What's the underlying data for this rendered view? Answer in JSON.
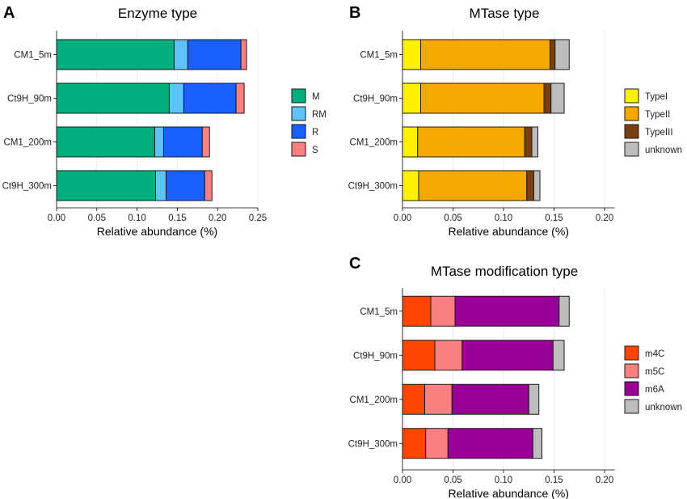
{
  "chart_data": [
    {
      "panel": "A",
      "type": "bar",
      "orientation": "horizontal",
      "stacked": true,
      "title": "Enzyme type",
      "xlabel": "Relative abundance (%)",
      "ylabel": "",
      "xlim": [
        0,
        0.25
      ],
      "xticks": [
        "0.00",
        "0.05",
        "0.10",
        "0.15",
        "0.20",
        "0.25"
      ],
      "categories": [
        "CM1_5m",
        "Ct9H_90m",
        "CM1_200m",
        "Ct9H_300m"
      ],
      "series": [
        {
          "name": "M",
          "color": "#00ae7e",
          "values": [
            0.146,
            0.14,
            0.122,
            0.123
          ]
        },
        {
          "name": "RM",
          "color": "#5fc3f7",
          "values": [
            0.017,
            0.018,
            0.011,
            0.013
          ]
        },
        {
          "name": "R",
          "color": "#1860ff",
          "values": [
            0.066,
            0.065,
            0.048,
            0.048
          ]
        },
        {
          "name": "S",
          "color": "#f88080",
          "values": [
            0.007,
            0.01,
            0.009,
            0.009
          ]
        }
      ],
      "legend_position": "right",
      "grid": "vertical"
    },
    {
      "panel": "B",
      "type": "bar",
      "orientation": "horizontal",
      "stacked": true,
      "title": "MTase type",
      "xlabel": "Relative abundance (%)",
      "ylabel": "",
      "xlim": [
        0,
        0.21
      ],
      "xticks": [
        "0.00",
        "0.05",
        "0.10",
        "0.15",
        "0.20"
      ],
      "categories": [
        "CM1_5m",
        "Ct9H_90m",
        "CM1_200m",
        "Ct9H_300m"
      ],
      "series": [
        {
          "name": "TypeI",
          "color": "#fff200",
          "values": [
            0.018,
            0.018,
            0.015,
            0.016
          ]
        },
        {
          "name": "TypeII",
          "color": "#f5a800",
          "values": [
            0.128,
            0.122,
            0.106,
            0.107
          ]
        },
        {
          "name": "TypeIII",
          "color": "#7a3f0e",
          "values": [
            0.005,
            0.007,
            0.007,
            0.007
          ]
        },
        {
          "name": "unknown",
          "color": "#bdbdbd",
          "values": [
            0.014,
            0.013,
            0.006,
            0.006
          ]
        }
      ],
      "legend_position": "right",
      "grid": "vertical"
    },
    {
      "panel": "C",
      "type": "bar",
      "orientation": "horizontal",
      "stacked": true,
      "title": "MTase modification type",
      "xlabel": "Relative abundance (%)",
      "ylabel": "",
      "xlim": [
        0,
        0.21
      ],
      "xticks": [
        "0.00",
        "0.05",
        "0.10",
        "0.15",
        "0.20"
      ],
      "categories": [
        "CM1_5m",
        "Ct9H_90m",
        "CM1_200m",
        "Ct9H_300m"
      ],
      "series": [
        {
          "name": "m4C",
          "color": "#ff4500",
          "values": [
            0.028,
            0.032,
            0.022,
            0.023
          ]
        },
        {
          "name": "m5C",
          "color": "#f88080",
          "values": [
            0.024,
            0.027,
            0.027,
            0.022
          ]
        },
        {
          "name": "m6A",
          "color": "#9a0096",
          "values": [
            0.103,
            0.09,
            0.076,
            0.084
          ]
        },
        {
          "name": "unknown",
          "color": "#bdbdbd",
          "values": [
            0.01,
            0.011,
            0.01,
            0.009
          ]
        }
      ],
      "legend_position": "right",
      "grid": "vertical"
    }
  ]
}
